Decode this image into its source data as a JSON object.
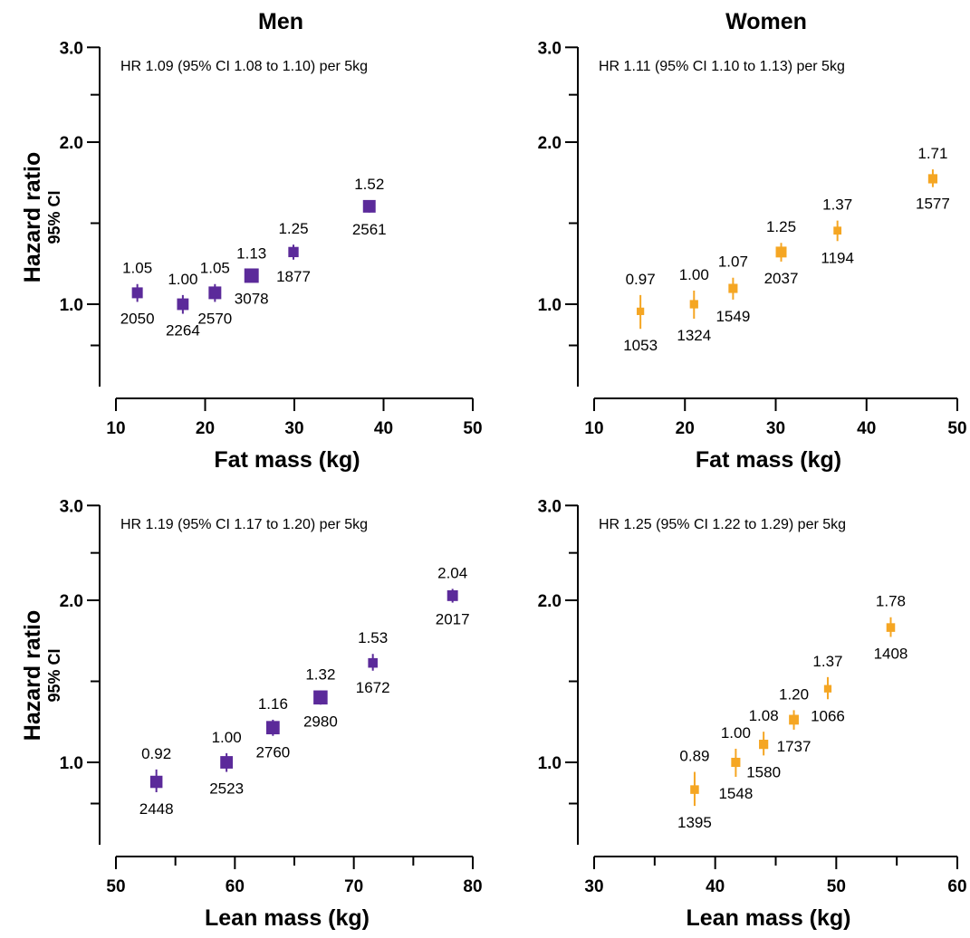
{
  "column_titles": [
    "Men",
    "Women"
  ],
  "ylabel": "Hazard ratio",
  "ylabel_sub": "95% CI",
  "colors": {
    "men": "#5b2a9a",
    "women": "#f5a623"
  },
  "chart_data": [
    {
      "type": "scatter",
      "panel": "men-fat",
      "column_title": "Men",
      "annotation": "HR 1.09 (95% CI 1.08 to 1.10) per 5kg",
      "xlabel": "Fat mass (kg)",
      "xlim": [
        10,
        50
      ],
      "xticks": [
        10,
        20,
        30,
        40,
        50
      ],
      "yscale": "log",
      "ylim": [
        0.7,
        3.0
      ],
      "yticks": [
        1.0,
        2.0,
        3.0
      ],
      "yticks_labels": [
        "1.0",
        "2.0",
        "3.0"
      ],
      "color": "#5b2a9a",
      "points": [
        {
          "x": 12.4,
          "hr": 1.05,
          "lo": 1.01,
          "hi": 1.09,
          "label": "1.05",
          "n": "2050"
        },
        {
          "x": 17.5,
          "hr": 1.0,
          "lo": 0.96,
          "hi": 1.04,
          "label": "1.00",
          "n": "2264"
        },
        {
          "x": 21.1,
          "hr": 1.05,
          "lo": 1.01,
          "hi": 1.09,
          "label": "1.05",
          "n": "2570"
        },
        {
          "x": 25.2,
          "hr": 1.13,
          "lo": 1.1,
          "hi": 1.16,
          "label": "1.13",
          "n": "3078"
        },
        {
          "x": 29.9,
          "hr": 1.25,
          "lo": 1.21,
          "hi": 1.29,
          "label": "1.25",
          "n": "1877"
        },
        {
          "x": 38.4,
          "hr": 1.52,
          "lo": 1.48,
          "hi": 1.56,
          "label": "1.52",
          "n": "2561"
        }
      ]
    },
    {
      "type": "scatter",
      "panel": "women-fat",
      "column_title": "Women",
      "annotation": "HR 1.11 (95% CI 1.10 to 1.13) per 5kg",
      "xlabel": "Fat mass (kg)",
      "xlim": [
        10,
        50
      ],
      "xticks": [
        10,
        20,
        30,
        40,
        50
      ],
      "yscale": "log",
      "ylim": [
        0.7,
        3.0
      ],
      "yticks": [
        1.0,
        2.0,
        3.0
      ],
      "yticks_labels": [
        "1.0",
        "2.0",
        "3.0"
      ],
      "color": "#f5a623",
      "points": [
        {
          "x": 15.1,
          "hr": 0.97,
          "lo": 0.9,
          "hi": 1.04,
          "label": "0.97",
          "n": "1053"
        },
        {
          "x": 21.0,
          "hr": 1.0,
          "lo": 0.94,
          "hi": 1.06,
          "label": "1.00",
          "n": "1324"
        },
        {
          "x": 25.3,
          "hr": 1.07,
          "lo": 1.02,
          "hi": 1.12,
          "label": "1.07",
          "n": "1549"
        },
        {
          "x": 30.6,
          "hr": 1.25,
          "lo": 1.2,
          "hi": 1.3,
          "label": "1.25",
          "n": "2037"
        },
        {
          "x": 36.8,
          "hr": 1.37,
          "lo": 1.31,
          "hi": 1.43,
          "label": "1.37",
          "n": "1194"
        },
        {
          "x": 47.3,
          "hr": 1.71,
          "lo": 1.65,
          "hi": 1.78,
          "label": "1.71",
          "n": "1577"
        }
      ]
    },
    {
      "type": "scatter",
      "panel": "men-lean",
      "column_title": "",
      "annotation": "HR 1.19 (95% CI 1.17 to 1.20) per 5kg",
      "xlabel": "Lean mass (kg)",
      "xlim": [
        50,
        80
      ],
      "xticks": [
        50,
        60,
        70,
        80
      ],
      "xminor": [
        55,
        65,
        75
      ],
      "yscale": "log",
      "ylim": [
        0.7,
        3.0
      ],
      "yticks": [
        1.0,
        2.0,
        3.0
      ],
      "yticks_labels": [
        "1.0",
        "2.0",
        "3.0"
      ],
      "color": "#5b2a9a",
      "points": [
        {
          "x": 53.4,
          "hr": 0.92,
          "lo": 0.88,
          "hi": 0.97,
          "label": "0.92",
          "n": "2448"
        },
        {
          "x": 59.3,
          "hr": 1.0,
          "lo": 0.96,
          "hi": 1.04,
          "label": "1.00",
          "n": "2523"
        },
        {
          "x": 63.2,
          "hr": 1.16,
          "lo": 1.12,
          "hi": 1.2,
          "label": "1.16",
          "n": "2760"
        },
        {
          "x": 67.2,
          "hr": 1.32,
          "lo": 1.28,
          "hi": 1.36,
          "label": "1.32",
          "n": "2980"
        },
        {
          "x": 71.6,
          "hr": 1.53,
          "lo": 1.48,
          "hi": 1.59,
          "label": "1.53",
          "n": "1672"
        },
        {
          "x": 78.3,
          "hr": 2.04,
          "lo": 1.98,
          "hi": 2.1,
          "label": "2.04",
          "n": "2017"
        }
      ]
    },
    {
      "type": "scatter",
      "panel": "women-lean",
      "column_title": "",
      "annotation": "HR 1.25 (95% CI 1.22 to 1.29) per 5kg",
      "xlabel": "Lean mass (kg)",
      "xlim": [
        30,
        60
      ],
      "xticks": [
        30,
        40,
        50,
        60
      ],
      "xminor": [
        35,
        45,
        55
      ],
      "yscale": "log",
      "ylim": [
        0.7,
        3.0
      ],
      "yticks": [
        1.0,
        2.0,
        3.0
      ],
      "yticks_labels": [
        "1.0",
        "2.0",
        "3.0"
      ],
      "color": "#f5a623",
      "points": [
        {
          "x": 38.3,
          "hr": 0.89,
          "lo": 0.83,
          "hi": 0.96,
          "label": "0.89",
          "n": "1395"
        },
        {
          "x": 41.7,
          "hr": 1.0,
          "lo": 0.94,
          "hi": 1.06,
          "label": "1.00",
          "n": "1548"
        },
        {
          "x": 44.0,
          "hr": 1.08,
          "lo": 1.03,
          "hi": 1.14,
          "label": "1.08",
          "n": "1580"
        },
        {
          "x": 46.5,
          "hr": 1.2,
          "lo": 1.15,
          "hi": 1.25,
          "label": "1.20",
          "n": "1737"
        },
        {
          "x": 49.3,
          "hr": 1.37,
          "lo": 1.31,
          "hi": 1.44,
          "label": "1.37",
          "n": "1066"
        },
        {
          "x": 54.5,
          "hr": 1.78,
          "lo": 1.71,
          "hi": 1.86,
          "label": "1.78",
          "n": "1408"
        }
      ]
    }
  ]
}
